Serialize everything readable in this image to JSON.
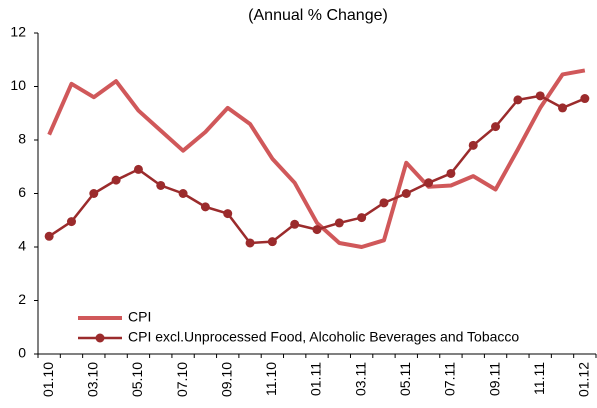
{
  "chart_data": {
    "type": "line",
    "title": "(Annual % Change)",
    "categories": [
      "01.10",
      null,
      "03.10",
      null,
      "05.10",
      null,
      "07.10",
      null,
      "09.10",
      null,
      "11.10",
      null,
      "01.11",
      null,
      "03.11",
      null,
      "05.11",
      null,
      "07.11",
      null,
      "09.11",
      null,
      "11.11",
      null,
      "01.12"
    ],
    "series": [
      {
        "name": "CPI",
        "color": "#d0585a",
        "marker": false,
        "values": [
          8.2,
          10.1,
          9.6,
          10.2,
          9.1,
          8.35,
          7.6,
          8.3,
          9.2,
          8.6,
          7.3,
          6.4,
          4.9,
          4.15,
          4.0,
          4.25,
          7.15,
          6.25,
          6.3,
          6.65,
          6.15,
          7.65,
          9.2,
          10.45,
          10.6
        ]
      },
      {
        "name": "CPI excl.Unprocessed Food, Alcoholic Beverages and Tobacco",
        "color": "#9b2b2c",
        "marker": true,
        "values": [
          4.4,
          4.95,
          6.0,
          6.5,
          6.9,
          6.3,
          6.0,
          5.5,
          5.25,
          4.15,
          4.2,
          4.85,
          4.65,
          4.9,
          5.1,
          5.65,
          6.0,
          6.4,
          6.75,
          7.8,
          8.5,
          9.5,
          9.65,
          9.2,
          9.55
        ]
      }
    ],
    "ylim": [
      0,
      12
    ],
    "yticks": [
      0,
      2,
      4,
      6,
      8,
      10,
      12
    ],
    "grid": false,
    "legend": "lower left"
  }
}
